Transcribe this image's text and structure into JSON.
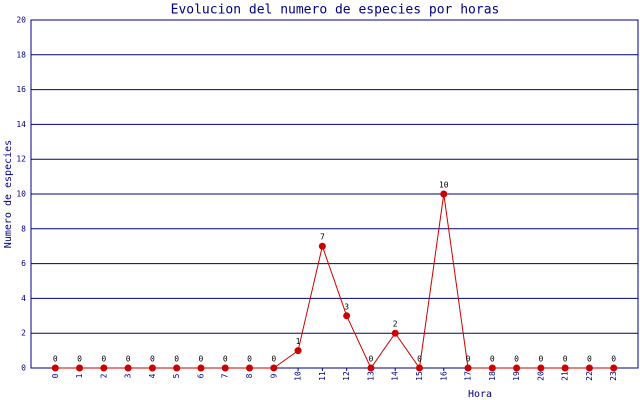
{
  "chart_data": {
    "type": "line",
    "title": "Evolucion del numero de especies por horas",
    "x_label": "Hora",
    "y_label": "Numero de especies",
    "x": [
      0,
      1,
      2,
      3,
      4,
      5,
      6,
      7,
      8,
      9,
      10,
      11,
      12,
      13,
      14,
      15,
      16,
      17,
      18,
      19,
      20,
      21,
      22,
      23
    ],
    "series": [
      {
        "name": "Numero de especies",
        "color": "#cc0000",
        "values": [
          0,
          0,
          0,
          0,
          0,
          0,
          0,
          0,
          0,
          0,
          1,
          7,
          3,
          0,
          2,
          0,
          10,
          0,
          0,
          0,
          0,
          0,
          0,
          0
        ]
      }
    ],
    "xlim": [
      -1,
      24
    ],
    "xticks": [
      0,
      1,
      2,
      3,
      4,
      5,
      6,
      7,
      8,
      9,
      10,
      11,
      12,
      13,
      14,
      15,
      16,
      17,
      18,
      19,
      20,
      21,
      22,
      23
    ],
    "ylim": [
      0,
      20
    ],
    "yticks": [
      0,
      2,
      4,
      6,
      8,
      10,
      12,
      14,
      16,
      18,
      20
    ],
    "grid": true
  }
}
